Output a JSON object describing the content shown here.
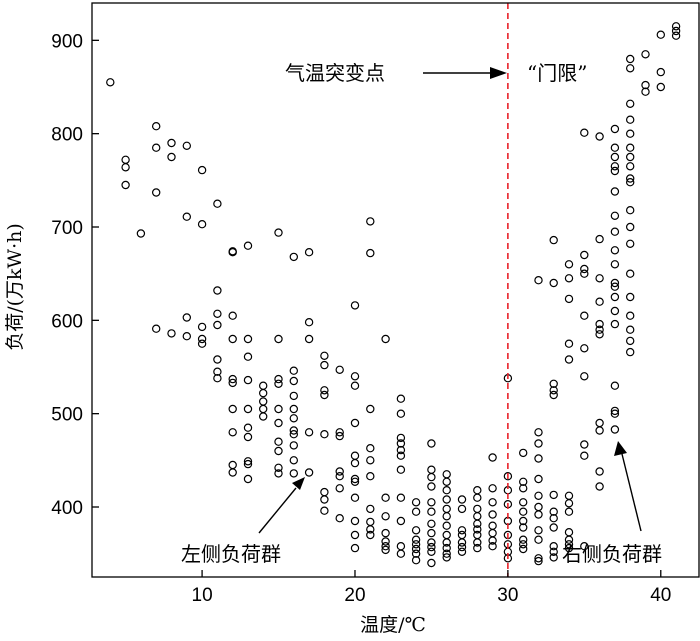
{
  "chart_data": {
    "type": "scatter",
    "title": "",
    "xlabel": "温度/℃",
    "ylabel": "负荷/(万kW·h)",
    "xlim": [
      2.8,
      42.5
    ],
    "ylim": [
      325,
      940
    ],
    "xticks": [
      10,
      20,
      30,
      40
    ],
    "yticks": [
      400,
      500,
      600,
      700,
      800,
      900
    ],
    "grid": false,
    "threshold": {
      "x": 30,
      "color": "#e8222a",
      "style": "dashed"
    },
    "marker": "open-circle",
    "annotations": {
      "threshold_label": "气温突变点",
      "threshold_quote": "“门限”",
      "left_group": "左侧负荷群",
      "right_group": "右侧负荷群"
    },
    "points": [
      [
        4,
        855
      ],
      [
        5,
        772
      ],
      [
        5,
        764
      ],
      [
        5,
        745
      ],
      [
        6,
        693
      ],
      [
        7,
        808
      ],
      [
        7,
        785
      ],
      [
        7,
        737
      ],
      [
        7,
        591
      ],
      [
        8,
        790
      ],
      [
        8,
        775
      ],
      [
        8,
        586
      ],
      [
        9,
        787
      ],
      [
        9,
        711
      ],
      [
        9,
        603
      ],
      [
        9,
        583
      ],
      [
        10,
        761
      ],
      [
        10,
        703
      ],
      [
        10,
        593
      ],
      [
        10,
        580
      ],
      [
        10,
        575
      ],
      [
        11,
        725
      ],
      [
        11,
        632
      ],
      [
        11,
        607
      ],
      [
        11,
        595
      ],
      [
        11,
        558
      ],
      [
        11,
        545
      ],
      [
        11,
        538
      ],
      [
        12,
        674
      ],
      [
        12,
        673
      ],
      [
        12,
        605
      ],
      [
        12,
        580
      ],
      [
        12,
        537
      ],
      [
        12,
        533
      ],
      [
        12,
        505
      ],
      [
        12,
        480
      ],
      [
        12,
        445
      ],
      [
        12,
        437
      ],
      [
        13,
        680
      ],
      [
        13,
        580
      ],
      [
        13,
        561
      ],
      [
        13,
        536
      ],
      [
        13,
        505
      ],
      [
        13,
        485
      ],
      [
        13,
        475
      ],
      [
        13,
        449
      ],
      [
        13,
        446
      ],
      [
        13,
        430
      ],
      [
        14,
        530
      ],
      [
        14,
        522
      ],
      [
        14,
        513
      ],
      [
        14,
        505
      ],
      [
        14,
        497
      ],
      [
        15,
        694
      ],
      [
        15,
        580
      ],
      [
        15,
        537
      ],
      [
        15,
        532
      ],
      [
        15,
        505
      ],
      [
        15,
        490
      ],
      [
        15,
        470
      ],
      [
        15,
        460
      ],
      [
        15,
        442
      ],
      [
        15,
        436
      ],
      [
        16,
        668
      ],
      [
        16,
        546
      ],
      [
        16,
        535
      ],
      [
        16,
        519
      ],
      [
        16,
        505
      ],
      [
        16,
        495
      ],
      [
        16,
        482
      ],
      [
        16,
        478
      ],
      [
        16,
        466
      ],
      [
        16,
        450
      ],
      [
        16,
        436
      ],
      [
        17,
        673
      ],
      [
        17,
        598
      ],
      [
        17,
        580
      ],
      [
        17,
        480
      ],
      [
        17,
        437
      ],
      [
        18,
        562
      ],
      [
        18,
        552
      ],
      [
        18,
        525
      ],
      [
        18,
        520
      ],
      [
        18,
        478
      ],
      [
        18,
        416
      ],
      [
        18,
        408
      ],
      [
        18,
        396
      ],
      [
        19,
        547
      ],
      [
        19,
        480
      ],
      [
        19,
        476
      ],
      [
        19,
        438
      ],
      [
        19,
        433
      ],
      [
        19,
        420
      ],
      [
        19,
        388
      ],
      [
        20,
        616
      ],
      [
        20,
        540
      ],
      [
        20,
        530
      ],
      [
        20,
        490
      ],
      [
        20,
        455
      ],
      [
        20,
        447
      ],
      [
        20,
        430
      ],
      [
        20,
        427
      ],
      [
        20,
        410
      ],
      [
        20,
        385
      ],
      [
        20,
        370
      ],
      [
        20,
        356
      ],
      [
        21,
        706
      ],
      [
        21,
        672
      ],
      [
        21,
        505
      ],
      [
        21,
        463
      ],
      [
        21,
        450
      ],
      [
        21,
        433
      ],
      [
        21,
        398
      ],
      [
        21,
        384
      ],
      [
        21,
        376
      ],
      [
        21,
        370
      ],
      [
        22,
        580
      ],
      [
        22,
        410
      ],
      [
        22,
        390
      ],
      [
        22,
        372
      ],
      [
        22,
        363
      ],
      [
        22,
        358
      ],
      [
        22,
        354
      ],
      [
        23,
        516
      ],
      [
        23,
        500
      ],
      [
        23,
        474
      ],
      [
        23,
        468
      ],
      [
        23,
        461
      ],
      [
        23,
        455
      ],
      [
        23,
        440
      ],
      [
        23,
        410
      ],
      [
        23,
        385
      ],
      [
        23,
        358
      ],
      [
        23,
        350
      ],
      [
        24,
        405
      ],
      [
        24,
        395
      ],
      [
        24,
        375
      ],
      [
        24,
        365
      ],
      [
        24,
        360
      ],
      [
        24,
        355
      ],
      [
        24,
        350
      ],
      [
        24,
        343
      ],
      [
        25,
        468
      ],
      [
        25,
        440
      ],
      [
        25,
        432
      ],
      [
        25,
        422
      ],
      [
        25,
        405
      ],
      [
        25,
        395
      ],
      [
        25,
        382
      ],
      [
        25,
        372
      ],
      [
        25,
        362
      ],
      [
        25,
        357
      ],
      [
        25,
        352
      ],
      [
        25,
        340
      ],
      [
        26,
        435
      ],
      [
        26,
        427
      ],
      [
        26,
        418
      ],
      [
        26,
        408
      ],
      [
        26,
        398
      ],
      [
        26,
        390
      ],
      [
        26,
        380
      ],
      [
        26,
        370
      ],
      [
        26,
        362
      ],
      [
        26,
        356
      ],
      [
        26,
        350
      ],
      [
        26,
        346
      ],
      [
        27,
        408
      ],
      [
        27,
        398
      ],
      [
        27,
        375
      ],
      [
        27,
        370
      ],
      [
        27,
        362
      ],
      [
        27,
        357
      ],
      [
        27,
        352
      ],
      [
        28,
        418
      ],
      [
        28,
        410
      ],
      [
        28,
        398
      ],
      [
        28,
        390
      ],
      [
        28,
        382
      ],
      [
        28,
        376
      ],
      [
        28,
        370
      ],
      [
        28,
        362
      ],
      [
        28,
        356
      ],
      [
        29,
        453
      ],
      [
        29,
        420
      ],
      [
        29,
        405
      ],
      [
        29,
        392
      ],
      [
        29,
        380
      ],
      [
        29,
        372
      ],
      [
        29,
        364
      ],
      [
        29,
        358
      ],
      [
        30,
        538
      ],
      [
        30,
        433
      ],
      [
        30,
        418
      ],
      [
        30,
        403
      ],
      [
        30,
        385
      ],
      [
        30,
        370
      ],
      [
        30,
        360
      ],
      [
        30,
        352
      ],
      [
        30,
        345
      ],
      [
        31,
        458
      ],
      [
        31,
        427
      ],
      [
        31,
        420
      ],
      [
        31,
        405
      ],
      [
        31,
        395
      ],
      [
        31,
        385
      ],
      [
        31,
        378
      ],
      [
        31,
        365
      ],
      [
        31,
        360
      ],
      [
        31,
        355
      ],
      [
        32,
        480
      ],
      [
        32,
        468
      ],
      [
        32,
        452
      ],
      [
        32,
        430
      ],
      [
        32,
        412
      ],
      [
        32,
        400
      ],
      [
        32,
        392
      ],
      [
        32,
        375
      ],
      [
        32,
        365
      ],
      [
        32,
        345
      ],
      [
        32,
        342
      ],
      [
        32,
        643
      ],
      [
        33,
        686
      ],
      [
        33,
        640
      ],
      [
        33,
        532
      ],
      [
        33,
        525
      ],
      [
        33,
        520
      ],
      [
        33,
        413
      ],
      [
        33,
        395
      ],
      [
        33,
        388
      ],
      [
        33,
        378
      ],
      [
        33,
        358
      ],
      [
        33,
        352
      ],
      [
        33,
        346
      ],
      [
        34,
        660
      ],
      [
        34,
        645
      ],
      [
        34,
        623
      ],
      [
        34,
        575
      ],
      [
        34,
        558
      ],
      [
        34,
        412
      ],
      [
        34,
        404
      ],
      [
        34,
        395
      ],
      [
        34,
        373
      ],
      [
        34,
        365
      ],
      [
        34,
        360
      ],
      [
        34,
        356
      ],
      [
        35,
        801
      ],
      [
        35,
        670
      ],
      [
        35,
        655
      ],
      [
        35,
        650
      ],
      [
        35,
        605
      ],
      [
        35,
        570
      ],
      [
        35,
        540
      ],
      [
        35,
        467
      ],
      [
        35,
        455
      ],
      [
        35,
        358
      ],
      [
        36,
        797
      ],
      [
        36,
        687
      ],
      [
        36,
        645
      ],
      [
        36,
        620
      ],
      [
        36,
        596
      ],
      [
        36,
        590
      ],
      [
        36,
        585
      ],
      [
        36,
        490
      ],
      [
        36,
        482
      ],
      [
        36,
        438
      ],
      [
        36,
        422
      ],
      [
        37,
        805
      ],
      [
        37,
        785
      ],
      [
        37,
        775
      ],
      [
        37,
        765
      ],
      [
        37,
        760
      ],
      [
        37,
        738
      ],
      [
        37,
        712
      ],
      [
        37,
        695
      ],
      [
        37,
        675
      ],
      [
        37,
        660
      ],
      [
        37,
        640
      ],
      [
        37,
        636
      ],
      [
        37,
        625
      ],
      [
        37,
        610
      ],
      [
        37,
        596
      ],
      [
        37,
        530
      ],
      [
        37,
        503
      ],
      [
        37,
        500
      ],
      [
        37,
        483
      ],
      [
        38,
        880
      ],
      [
        38,
        870
      ],
      [
        38,
        832
      ],
      [
        38,
        815
      ],
      [
        38,
        800
      ],
      [
        38,
        785
      ],
      [
        38,
        775
      ],
      [
        38,
        765
      ],
      [
        38,
        752
      ],
      [
        38,
        748
      ],
      [
        38,
        718
      ],
      [
        38,
        700
      ],
      [
        38,
        682
      ],
      [
        38,
        650
      ],
      [
        38,
        625
      ],
      [
        38,
        605
      ],
      [
        38,
        590
      ],
      [
        38,
        578
      ],
      [
        38,
        566
      ],
      [
        39,
        885
      ],
      [
        39,
        852
      ],
      [
        39,
        845
      ],
      [
        40,
        906
      ],
      [
        40,
        866
      ],
      [
        40,
        850
      ],
      [
        41,
        915
      ],
      [
        41,
        910
      ],
      [
        41,
        905
      ]
    ]
  }
}
